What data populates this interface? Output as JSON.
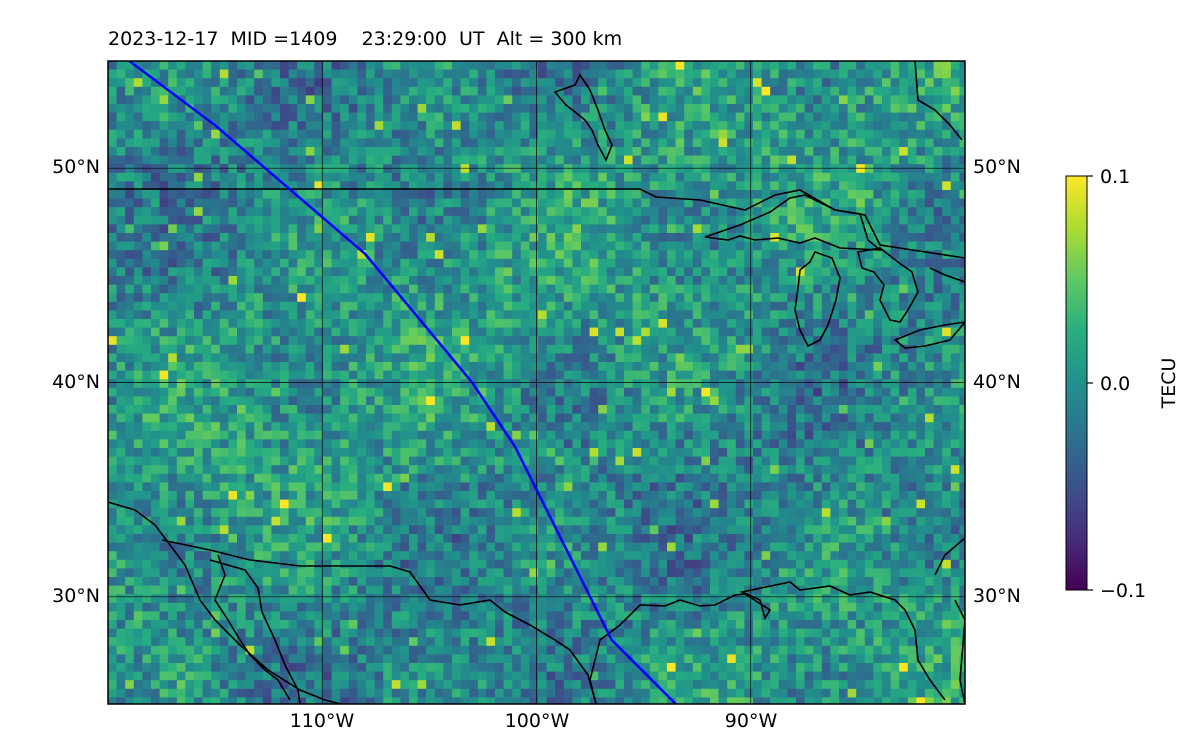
{
  "header": {
    "title": "2023-12-17  MID =1409    23:29:00  UT  Alt = 300 km"
  },
  "map": {
    "lat_range": [
      25,
      55
    ],
    "lon_range": [
      -120,
      -80
    ],
    "lat_grid": [
      30,
      40,
      50
    ],
    "lon_grid": [
      -110,
      -100,
      -90
    ],
    "lat_labels": [
      "30°N",
      "40°N",
      "50°N"
    ],
    "lon_labels": [
      "110°W",
      "100°W",
      "90°W"
    ],
    "track_color": "#0000ff",
    "coastline_color": "#000000",
    "colormap": "viridis",
    "satellite_track": [
      [
        55,
        -119
      ],
      [
        52,
        -115
      ],
      [
        49,
        -111.5
      ],
      [
        46,
        -108
      ],
      [
        43,
        -105.5
      ],
      [
        40,
        -103
      ],
      [
        37,
        -101
      ],
      [
        34,
        -99.5
      ],
      [
        31,
        -98
      ],
      [
        28,
        -96.5
      ],
      [
        25,
        -93.5
      ]
    ]
  },
  "colorbar": {
    "label": "TECU",
    "min": -0.1,
    "max": 0.1,
    "ticks": [
      "0.1",
      "0.0",
      "−0.1"
    ]
  }
}
